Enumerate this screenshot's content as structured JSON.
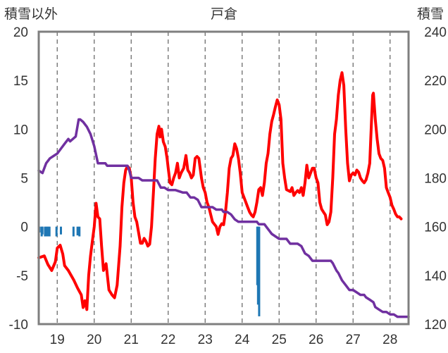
{
  "chart_data": {
    "type": "line",
    "title": "戸倉",
    "ylabel_left": "積雪以外",
    "ylabel_right": "積雪",
    "x_ticks": [
      "19",
      "20",
      "21",
      "22",
      "23",
      "24",
      "25",
      "26",
      "27",
      "28"
    ],
    "xlim": [
      18.5,
      28.5
    ],
    "ylim_left": [
      -10,
      20
    ],
    "ylim_right": [
      120,
      240
    ],
    "y_ticks_left": [
      "20",
      "15",
      "10",
      "5",
      "0",
      "-5",
      "-10"
    ],
    "y_ticks_right": [
      "240",
      "220",
      "200",
      "180",
      "160",
      "140",
      "120"
    ],
    "grid": "vertical dashed at each day",
    "series": [
      {
        "name": "",
        "axis": "left",
        "color": "#ff0000",
        "points": [
          [
            18.5,
            -3.2
          ],
          [
            18.65,
            -3.0
          ],
          [
            18.75,
            -3.9
          ],
          [
            18.85,
            -4.5
          ],
          [
            18.95,
            -3.6
          ],
          [
            19.0,
            -2.2
          ],
          [
            19.08,
            -1.9
          ],
          [
            19.15,
            -2.8
          ],
          [
            19.2,
            -4.0
          ],
          [
            19.3,
            -4.5
          ],
          [
            19.45,
            -5.5
          ],
          [
            19.55,
            -6.3
          ],
          [
            19.65,
            -7.0
          ],
          [
            19.7,
            -8.3
          ],
          [
            19.75,
            -7.6
          ],
          [
            19.8,
            -8.5
          ],
          [
            19.85,
            -5.0
          ],
          [
            19.9,
            -3.0
          ],
          [
            19.95,
            -1.5
          ],
          [
            20.0,
            0.0
          ],
          [
            20.05,
            2.4
          ],
          [
            20.1,
            1.0
          ],
          [
            20.15,
            0.8
          ],
          [
            20.2,
            -2.0
          ],
          [
            20.25,
            -4.5
          ],
          [
            20.32,
            -3.8
          ],
          [
            20.4,
            -6.5
          ],
          [
            20.48,
            -7.0
          ],
          [
            20.55,
            -7.3
          ],
          [
            20.62,
            -6.0
          ],
          [
            20.7,
            -2.0
          ],
          [
            20.75,
            2.0
          ],
          [
            20.8,
            4.5
          ],
          [
            20.85,
            5.8
          ],
          [
            20.9,
            6.2
          ],
          [
            20.95,
            6.0
          ],
          [
            21.0,
            5.0
          ],
          [
            21.05,
            2.5
          ],
          [
            21.1,
            1.0
          ],
          [
            21.15,
            0.5
          ],
          [
            21.25,
            -1.7
          ],
          [
            21.3,
            -1.7
          ],
          [
            21.35,
            -1.2
          ],
          [
            21.4,
            -1.5
          ],
          [
            21.45,
            -2.0
          ],
          [
            21.5,
            -1.8
          ],
          [
            21.55,
            0.0
          ],
          [
            21.6,
            3.5
          ],
          [
            21.65,
            7.0
          ],
          [
            21.7,
            9.5
          ],
          [
            21.75,
            10.3
          ],
          [
            21.78,
            9.2
          ],
          [
            21.82,
            10.0
          ],
          [
            21.87,
            8.7
          ],
          [
            21.92,
            8.2
          ],
          [
            21.97,
            7.0
          ],
          [
            22.0,
            6.0
          ],
          [
            22.05,
            4.5
          ],
          [
            22.1,
            4.3
          ],
          [
            22.15,
            5.0
          ],
          [
            22.2,
            5.5
          ],
          [
            22.25,
            6.5
          ],
          [
            22.3,
            5.0
          ],
          [
            22.35,
            5.5
          ],
          [
            22.42,
            6.0
          ],
          [
            22.48,
            7.3
          ],
          [
            22.53,
            5.8
          ],
          [
            22.58,
            5.5
          ],
          [
            22.63,
            5.0
          ],
          [
            22.68,
            5.3
          ],
          [
            22.73,
            7.0
          ],
          [
            22.78,
            7.2
          ],
          [
            22.83,
            7.0
          ],
          [
            22.9,
            5.0
          ],
          [
            22.95,
            4.0
          ],
          [
            23.0,
            3.5
          ],
          [
            23.05,
            2.5
          ],
          [
            23.1,
            2.0
          ],
          [
            23.2,
            0.5
          ],
          [
            23.3,
            0.0
          ],
          [
            23.35,
            -0.8
          ],
          [
            23.4,
            0.0
          ],
          [
            23.45,
            0.3
          ],
          [
            23.5,
            0.2
          ],
          [
            23.55,
            1.5
          ],
          [
            23.6,
            3.5
          ],
          [
            23.65,
            6.0
          ],
          [
            23.7,
            7.0
          ],
          [
            23.75,
            7.3
          ],
          [
            23.8,
            8.5
          ],
          [
            23.85,
            8.0
          ],
          [
            23.9,
            7.0
          ],
          [
            23.95,
            5.5
          ],
          [
            24.0,
            3.5
          ],
          [
            24.05,
            3.0
          ],
          [
            24.1,
            2.5
          ],
          [
            24.15,
            2.0
          ],
          [
            24.2,
            1.5
          ],
          [
            24.25,
            1.2
          ],
          [
            24.3,
            1.0
          ],
          [
            24.35,
            1.5
          ],
          [
            24.4,
            2.5
          ],
          [
            24.45,
            3.8
          ],
          [
            24.5,
            4.0
          ],
          [
            24.55,
            3.2
          ],
          [
            24.6,
            4.5
          ],
          [
            24.65,
            6.5
          ],
          [
            24.7,
            7.5
          ],
          [
            24.75,
            9.5
          ],
          [
            24.8,
            10.8
          ],
          [
            24.85,
            11.5
          ],
          [
            24.9,
            12.3
          ],
          [
            24.95,
            13.0
          ],
          [
            25.0,
            12.5
          ],
          [
            25.05,
            11.0
          ],
          [
            25.1,
            6.5
          ],
          [
            25.15,
            5.0
          ],
          [
            25.2,
            3.8
          ],
          [
            25.3,
            3.6
          ],
          [
            25.35,
            4.0
          ],
          [
            25.4,
            3.2
          ],
          [
            25.45,
            3.5
          ],
          [
            25.5,
            3.7
          ],
          [
            25.55,
            3.5
          ],
          [
            25.6,
            4.0
          ],
          [
            25.65,
            3.2
          ],
          [
            25.7,
            4.5
          ],
          [
            25.75,
            6.3
          ],
          [
            25.8,
            5.0
          ],
          [
            25.85,
            5.5
          ],
          [
            25.9,
            6.0
          ],
          [
            25.95,
            6.0
          ],
          [
            26.0,
            5.0
          ],
          [
            26.05,
            4.5
          ],
          [
            26.1,
            2.5
          ],
          [
            26.15,
            1.8
          ],
          [
            26.2,
            1.5
          ],
          [
            26.25,
            1.2
          ],
          [
            26.3,
            0.2
          ],
          [
            26.35,
            0.5
          ],
          [
            26.4,
            1.5
          ],
          [
            26.45,
            5.0
          ],
          [
            26.5,
            9.5
          ],
          [
            26.55,
            11.0
          ],
          [
            26.6,
            13.5
          ],
          [
            26.65,
            15.0
          ],
          [
            26.7,
            15.8
          ],
          [
            26.75,
            14.5
          ],
          [
            26.8,
            10.0
          ],
          [
            26.85,
            6.5
          ],
          [
            26.9,
            4.7
          ],
          [
            26.95,
            5.3
          ],
          [
            27.0,
            5.5
          ],
          [
            27.05,
            5.3
          ],
          [
            27.1,
            5.8
          ],
          [
            27.15,
            5.6
          ],
          [
            27.2,
            5.0
          ],
          [
            27.25,
            4.7
          ],
          [
            27.3,
            4.5
          ],
          [
            27.35,
            4.8
          ],
          [
            27.4,
            5.5
          ],
          [
            27.45,
            6.5
          ],
          [
            27.5,
            11.0
          ],
          [
            27.53,
            13.5
          ],
          [
            27.55,
            13.7
          ],
          [
            27.6,
            11.0
          ],
          [
            27.65,
            9.0
          ],
          [
            27.7,
            7.5
          ],
          [
            27.75,
            7.0
          ],
          [
            27.8,
            6.8
          ],
          [
            27.85,
            6.0
          ],
          [
            27.9,
            4.0
          ],
          [
            27.95,
            3.5
          ],
          [
            28.0,
            3.0
          ],
          [
            28.05,
            2.2
          ],
          [
            28.1,
            1.8
          ],
          [
            28.15,
            1.3
          ],
          [
            28.2,
            1.0
          ],
          [
            28.25,
            1.0
          ],
          [
            28.3,
            0.8
          ]
        ]
      },
      {
        "name": "",
        "axis": "right",
        "color": "#7030a0",
        "points": [
          [
            18.5,
            183
          ],
          [
            18.6,
            182
          ],
          [
            18.7,
            186
          ],
          [
            18.8,
            188
          ],
          [
            18.9,
            189
          ],
          [
            19.0,
            190
          ],
          [
            19.1,
            192
          ],
          [
            19.2,
            194
          ],
          [
            19.3,
            196
          ],
          [
            19.35,
            195
          ],
          [
            19.5,
            197
          ],
          [
            19.58,
            204
          ],
          [
            19.62,
            204
          ],
          [
            19.7,
            203
          ],
          [
            19.8,
            201
          ],
          [
            19.9,
            198
          ],
          [
            20.0,
            193
          ],
          [
            20.1,
            186
          ],
          [
            20.2,
            186
          ],
          [
            20.3,
            186
          ],
          [
            20.35,
            185
          ],
          [
            20.5,
            185
          ],
          [
            20.8,
            185
          ],
          [
            20.9,
            185
          ],
          [
            20.95,
            183
          ],
          [
            21.0,
            180
          ],
          [
            21.1,
            180
          ],
          [
            21.2,
            180
          ],
          [
            21.3,
            179
          ],
          [
            21.5,
            179
          ],
          [
            21.7,
            179
          ],
          [
            21.8,
            176
          ],
          [
            21.9,
            176
          ],
          [
            22.0,
            175
          ],
          [
            22.2,
            175
          ],
          [
            22.4,
            174
          ],
          [
            22.5,
            174
          ],
          [
            22.6,
            172
          ],
          [
            22.7,
            172
          ],
          [
            22.8,
            171
          ],
          [
            22.9,
            168
          ],
          [
            23.0,
            168
          ],
          [
            23.2,
            168
          ],
          [
            23.3,
            167
          ],
          [
            23.45,
            167
          ],
          [
            23.5,
            166
          ],
          [
            23.6,
            166
          ],
          [
            23.7,
            165
          ],
          [
            23.8,
            163
          ],
          [
            23.9,
            162
          ],
          [
            24.0,
            162
          ],
          [
            24.2,
            162
          ],
          [
            24.3,
            162
          ],
          [
            24.4,
            162
          ],
          [
            24.45,
            161
          ],
          [
            24.6,
            161
          ],
          [
            24.7,
            159
          ],
          [
            24.8,
            157
          ],
          [
            24.9,
            156
          ],
          [
            25.0,
            155
          ],
          [
            25.2,
            155
          ],
          [
            25.3,
            153
          ],
          [
            25.5,
            153
          ],
          [
            25.6,
            152
          ],
          [
            25.7,
            149
          ],
          [
            25.8,
            148
          ],
          [
            25.9,
            146
          ],
          [
            26.0,
            146
          ],
          [
            26.4,
            146
          ],
          [
            26.45,
            145
          ],
          [
            26.55,
            142
          ],
          [
            26.6,
            141
          ],
          [
            26.7,
            138
          ],
          [
            26.8,
            136
          ],
          [
            26.9,
            134
          ],
          [
            27.0,
            134
          ],
          [
            27.1,
            133
          ],
          [
            27.2,
            132
          ],
          [
            27.3,
            132
          ],
          [
            27.35,
            131
          ],
          [
            27.45,
            130
          ],
          [
            27.55,
            129
          ],
          [
            27.6,
            127
          ],
          [
            27.7,
            126
          ],
          [
            27.8,
            125
          ],
          [
            27.9,
            125
          ],
          [
            28.0,
            124
          ],
          [
            28.1,
            124
          ],
          [
            28.2,
            123
          ],
          [
            28.3,
            123
          ],
          [
            28.4,
            123
          ],
          [
            28.5,
            123
          ]
        ]
      },
      {
        "name": "",
        "axis": "left",
        "type": "bar",
        "color": "#1f77b4",
        "points": [
          [
            18.52,
            -0.6
          ],
          [
            18.58,
            -1.0
          ],
          [
            18.6,
            -0.8
          ],
          [
            18.67,
            -1.0
          ],
          [
            18.71,
            -1.0
          ],
          [
            18.75,
            -1.0
          ],
          [
            18.79,
            -1.0
          ],
          [
            18.98,
            -1.0
          ],
          [
            19.1,
            -0.8
          ],
          [
            19.44,
            -1.0
          ],
          [
            19.55,
            -0.9
          ],
          [
            19.6,
            -1.0
          ],
          [
            24.41,
            -6.0
          ],
          [
            24.43,
            -8.0
          ],
          [
            24.46,
            -9.2
          ]
        ]
      }
    ]
  }
}
